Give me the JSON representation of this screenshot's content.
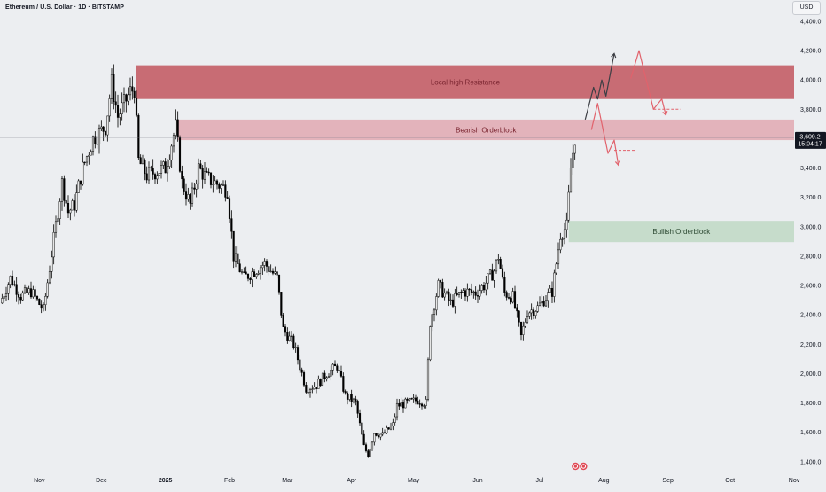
{
  "header": {
    "title": "Ethereum / U.S. Dollar · 1D · BITSTAMP",
    "unit": "USD"
  },
  "price_label": {
    "price": "3,609.2",
    "countdown": "15:04:17"
  },
  "chart_data": {
    "type": "candlestick",
    "title": "Ethereum / U.S. Dollar · 1D · BITSTAMP",
    "symbol": "ETH/USD",
    "interval": "1D",
    "exchange": "BITSTAMP",
    "y_axis": {
      "ticks": [
        1400,
        1600,
        1800,
        2000,
        2200,
        2400,
        2600,
        2800,
        3000,
        3200,
        3400,
        3600,
        3800,
        4000,
        4200,
        4400
      ],
      "tick_labels": [
        "1,400.0",
        "1,600.0",
        "1,800.0",
        "2,000.0",
        "2,200.0",
        "2,400.0",
        "2,600.0",
        "2,800.0",
        "3,000.0",
        "3,200.0",
        "3,400.0",
        "3,600.0",
        "3,800.0",
        "4,000.0",
        "4,200.0",
        "4,400.0"
      ],
      "range": [
        1320,
        4460
      ],
      "side": "right"
    },
    "x_axis": {
      "ticks": [
        {
          "date": "2024-11-01",
          "label": "Nov"
        },
        {
          "date": "2024-12-01",
          "label": "Dec"
        },
        {
          "date": "2025-01-01",
          "label": "2025"
        },
        {
          "date": "2025-02-01",
          "label": "Feb"
        },
        {
          "date": "2025-03-01",
          "label": "Mar"
        },
        {
          "date": "2025-04-01",
          "label": "Apr"
        },
        {
          "date": "2025-05-01",
          "label": "May"
        },
        {
          "date": "2025-06-01",
          "label": "Jun"
        },
        {
          "date": "2025-07-01",
          "label": "Jul"
        },
        {
          "date": "2025-08-01",
          "label": "Aug"
        },
        {
          "date": "2025-09-01",
          "label": "Sep"
        },
        {
          "date": "2025-10-01",
          "label": "Oct"
        },
        {
          "date": "2025-11-01",
          "label": "Nov"
        }
      ],
      "range": [
        "2024-10-13",
        "2025-11-01"
      ]
    },
    "last_price": 3609.2,
    "grid": false,
    "legend": "none",
    "colors": {
      "candle_up": "#ffffff",
      "candle_down": "#000000",
      "candle_outline": "#000000"
    },
    "price_path": [
      {
        "date": "2024-10-13",
        "price": 2480
      },
      {
        "date": "2024-10-18",
        "price": 2650
      },
      {
        "date": "2024-10-23",
        "price": 2530
      },
      {
        "date": "2024-10-28",
        "price": 2560
      },
      {
        "date": "2024-11-03",
        "price": 2430
      },
      {
        "date": "2024-11-06",
        "price": 2720
      },
      {
        "date": "2024-11-12",
        "price": 3300
      },
      {
        "date": "2024-11-15",
        "price": 3100
      },
      {
        "date": "2024-11-18",
        "price": 3150
      },
      {
        "date": "2024-11-22",
        "price": 3400
      },
      {
        "date": "2024-11-27",
        "price": 3600
      },
      {
        "date": "2024-12-03",
        "price": 3680
      },
      {
        "date": "2024-12-06",
        "price": 3980
      },
      {
        "date": "2024-12-09",
        "price": 3750
      },
      {
        "date": "2024-12-15",
        "price": 3920
      },
      {
        "date": "2024-12-17",
        "price": 3940
      },
      {
        "date": "2024-12-19",
        "price": 3450
      },
      {
        "date": "2024-12-23",
        "price": 3350
      },
      {
        "date": "2024-12-28",
        "price": 3380
      },
      {
        "date": "2025-01-01",
        "price": 3400
      },
      {
        "date": "2025-01-06",
        "price": 3680
      },
      {
        "date": "2025-01-09",
        "price": 3300
      },
      {
        "date": "2025-01-13",
        "price": 3150
      },
      {
        "date": "2025-01-17",
        "price": 3400
      },
      {
        "date": "2025-01-21",
        "price": 3330
      },
      {
        "date": "2025-01-25",
        "price": 3300
      },
      {
        "date": "2025-01-31",
        "price": 3250
      },
      {
        "date": "2025-02-03",
        "price": 2800
      },
      {
        "date": "2025-02-08",
        "price": 2650
      },
      {
        "date": "2025-02-13",
        "price": 2700
      },
      {
        "date": "2025-02-18",
        "price": 2750
      },
      {
        "date": "2025-02-24",
        "price": 2650
      },
      {
        "date": "2025-02-27",
        "price": 2300
      },
      {
        "date": "2025-03-04",
        "price": 2200
      },
      {
        "date": "2025-03-10",
        "price": 1900
      },
      {
        "date": "2025-03-15",
        "price": 1920
      },
      {
        "date": "2025-03-20",
        "price": 2000
      },
      {
        "date": "2025-03-25",
        "price": 2050
      },
      {
        "date": "2025-03-29",
        "price": 1850
      },
      {
        "date": "2025-04-03",
        "price": 1800
      },
      {
        "date": "2025-04-07",
        "price": 1500
      },
      {
        "date": "2025-04-09",
        "price": 1450
      },
      {
        "date": "2025-04-12",
        "price": 1600
      },
      {
        "date": "2025-04-16",
        "price": 1580
      },
      {
        "date": "2025-04-21",
        "price": 1650
      },
      {
        "date": "2025-04-23",
        "price": 1780
      },
      {
        "date": "2025-04-28",
        "price": 1800
      },
      {
        "date": "2025-05-03",
        "price": 1820
      },
      {
        "date": "2025-05-07",
        "price": 1800
      },
      {
        "date": "2025-05-09",
        "price": 2350
      },
      {
        "date": "2025-05-13",
        "price": 2600
      },
      {
        "date": "2025-05-19",
        "price": 2480
      },
      {
        "date": "2025-05-25",
        "price": 2560
      },
      {
        "date": "2025-05-31",
        "price": 2550
      },
      {
        "date": "2025-06-04",
        "price": 2600
      },
      {
        "date": "2025-06-09",
        "price": 2700
      },
      {
        "date": "2025-06-11",
        "price": 2800
      },
      {
        "date": "2025-06-14",
        "price": 2550
      },
      {
        "date": "2025-06-18",
        "price": 2520
      },
      {
        "date": "2025-06-22",
        "price": 2250
      },
      {
        "date": "2025-06-25",
        "price": 2420
      },
      {
        "date": "2025-06-30",
        "price": 2450
      },
      {
        "date": "2025-07-04",
        "price": 2520
      },
      {
        "date": "2025-07-07",
        "price": 2560
      },
      {
        "date": "2025-07-09",
        "price": 2750
      },
      {
        "date": "2025-07-11",
        "price": 2950
      },
      {
        "date": "2025-07-14",
        "price": 3000
      },
      {
        "date": "2025-07-16",
        "price": 3400
      },
      {
        "date": "2025-07-18",
        "price": 3609
      }
    ],
    "zones": [
      {
        "label": "Local high Resistance",
        "from_date": "2024-12-18",
        "to_date": "2025-11-01",
        "low": 3870,
        "high": 4100,
        "color": "#c2555e"
      },
      {
        "label": "Bearish Orderblock",
        "from_date": "2025-01-07",
        "to_date": "2025-11-01",
        "low": 3590,
        "high": 3730,
        "color": "#e2a8b1"
      },
      {
        "label": "Bullish Orderblock",
        "from_date": "2025-07-15",
        "to_date": "2025-11-01",
        "low": 2895,
        "high": 3040,
        "color": "#bfd8c4"
      }
    ],
    "projections": [
      {
        "color": "#3c3e44",
        "points": [
          {
            "date": "2025-07-23",
            "price": 3730
          },
          {
            "date": "2025-07-27",
            "price": 3950
          },
          {
            "date": "2025-07-29",
            "price": 3870
          },
          {
            "date": "2025-07-31",
            "price": 4000
          },
          {
            "date": "2025-08-02",
            "price": 3890
          },
          {
            "date": "2025-08-06",
            "price": 4180
          }
        ]
      },
      {
        "color": "#e1626c",
        "points": [
          {
            "date": "2025-08-14",
            "price": 4010
          },
          {
            "date": "2025-08-18",
            "price": 4200
          },
          {
            "date": "2025-08-25",
            "price": 3800
          },
          {
            "date": "2025-08-29",
            "price": 3870
          },
          {
            "date": "2025-08-31",
            "price": 3760
          }
        ]
      },
      {
        "color": "#e1626c",
        "points": [
          {
            "date": "2025-07-26",
            "price": 3660
          },
          {
            "date": "2025-07-29",
            "price": 3840
          },
          {
            "date": "2025-08-03",
            "price": 3500
          },
          {
            "date": "2025-08-06",
            "price": 3590
          },
          {
            "date": "2025-08-08",
            "price": 3420
          }
        ]
      }
    ],
    "reference_lines": [
      {
        "price": 3800,
        "from_date": "2025-08-25",
        "to_date": "2025-09-07",
        "style": "dashed",
        "color": "#e1626c"
      },
      {
        "price": 3520,
        "from_date": "2025-08-06",
        "to_date": "2025-08-16",
        "style": "dashed",
        "color": "#e1626c"
      }
    ]
  }
}
